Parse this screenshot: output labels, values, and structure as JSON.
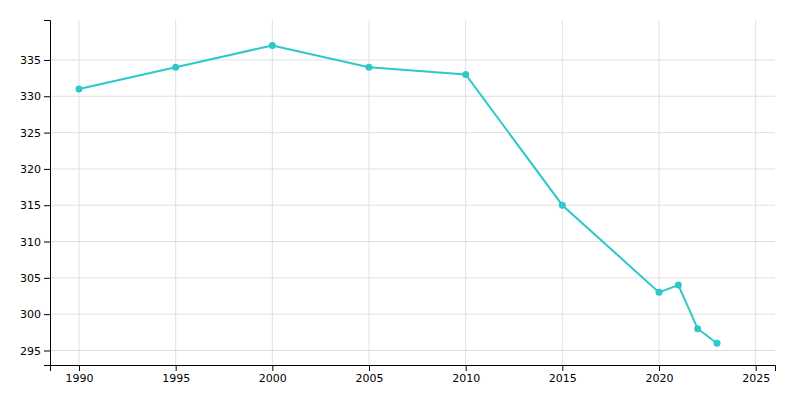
{
  "chart_data": {
    "type": "line",
    "x": [
      1990,
      1995,
      2000,
      2005,
      2010,
      2015,
      2020,
      2021,
      2022,
      2023
    ],
    "values": [
      331,
      334,
      337,
      334,
      333,
      315,
      303,
      304,
      298,
      296
    ],
    "color": "#2EC8C8",
    "marker": "circle",
    "xlim": [
      1988.5,
      2026
    ],
    "ylim": [
      293,
      340.5
    ],
    "xticks": [
      1990,
      1995,
      2000,
      2005,
      2010,
      2015,
      2020,
      2025
    ],
    "yticks": [
      295,
      300,
      305,
      310,
      315,
      320,
      325,
      330,
      335
    ],
    "grid": true
  }
}
